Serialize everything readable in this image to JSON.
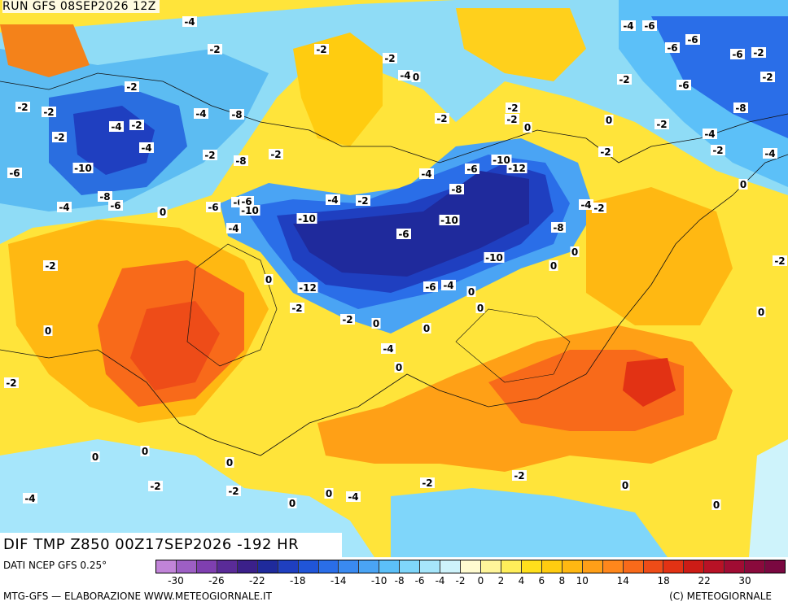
{
  "header": {
    "run_label": "RUN GFS 08SEP2026 12Z",
    "product_label": "DIF TMP Z850 00Z17SEP2026 -192 HR"
  },
  "footer": {
    "source": "DATI NCEP GFS 0.25°",
    "credit_left": "MTG-GFS — ELABORAZIONE WWW.METEOGIORNALE.IT",
    "credit_right": "(C) METEOGIORNALE"
  },
  "legend": {
    "colors": [
      "#c184d8",
      "#9d5fc4",
      "#7f3fb0",
      "#5a2b98",
      "#3b208a",
      "#1f2a9c",
      "#1f3fc0",
      "#2055d8",
      "#2a6ee8",
      "#3a8af0",
      "#4aa4f4",
      "#5cc0f8",
      "#7fd6fa",
      "#a6e6fb",
      "#cef3fb",
      "#fffbd0",
      "#fff59a",
      "#ffee5a",
      "#ffe01c",
      "#ffcc10",
      "#ffb812",
      "#ff9f18",
      "#ff871c",
      "#f86a1a",
      "#ee4c18",
      "#e23214",
      "#cc1c16",
      "#b81226",
      "#a00c33",
      "#8a0a3c",
      "#7a0840"
    ],
    "ticks": [
      "-30",
      "-26",
      "-22",
      "-18",
      "-14",
      "-10",
      "-8",
      "-6",
      "-4",
      "-2",
      "0",
      "2",
      "4",
      "6",
      "8",
      "10",
      "14",
      "18",
      "22",
      "30"
    ]
  },
  "contour_labels": [
    "-4",
    "-2",
    "-2",
    "-2",
    "-2",
    "-2",
    "-2",
    "-4",
    "-2",
    "-4",
    "-4",
    "-8",
    "-10",
    "-6",
    "-8",
    "-6",
    "-4",
    "-6",
    "-6",
    "-10",
    "-6",
    "-4",
    "-2",
    "-8",
    "-2",
    "-4",
    "-2",
    "0",
    "-10",
    "-6",
    "-2",
    "-12",
    "-10",
    "-10",
    "-6",
    "-12",
    "-10",
    "-4",
    "-8",
    "-8",
    "-6",
    "-4",
    "0",
    "0",
    "0",
    "0",
    "-4",
    "-2",
    "-4",
    "-2",
    "0",
    "-2",
    "-2",
    "0",
    "-2",
    "0",
    "-2",
    "-4",
    "-4",
    "-6",
    "-2",
    "-2",
    "-8",
    "-4",
    "-6",
    "-2",
    "-4",
    "-6",
    "-6",
    "-6",
    "-2",
    "-2",
    "-2",
    "-2",
    "-2",
    "0",
    "0",
    "0",
    "0",
    "0",
    "0",
    "0",
    "-2",
    "0",
    "0",
    "0",
    "0",
    "0",
    "0",
    "0",
    "-2",
    "-2",
    "0",
    "0",
    "-4",
    "-4",
    "-2",
    "-2"
  ]
}
